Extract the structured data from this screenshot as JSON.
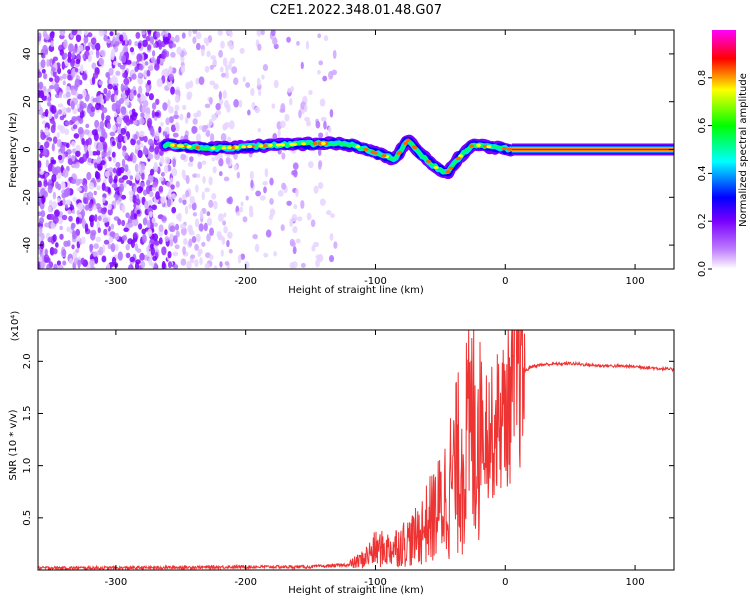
{
  "chart_data": [
    {
      "type": "heatmap",
      "title": "C2E1.2022.348.01.48.G07",
      "xlabel": "Height of straight line (km)",
      "ylabel": "Frequency (Hz)",
      "xlim": [
        -360,
        130
      ],
      "ylim": [
        -50,
        50
      ],
      "xticks": [
        -300,
        -200,
        -100,
        0,
        100
      ],
      "yticks": [
        -40,
        -20,
        0,
        20,
        40
      ],
      "grid": false,
      "colorbar": {
        "label": "Normalized spectral amplitude",
        "range": [
          0,
          1
        ],
        "ticks": [
          "0.0",
          "0.2",
          "0.4",
          "0.6",
          "0.8"
        ],
        "colormap": [
          "#ffffff",
          "#7a00ff",
          "#0000ff",
          "#00ffff",
          "#00ff00",
          "#ffff00",
          "#ff0000",
          "#ff00ff"
        ]
      },
      "tone_track": [
        [
          -262,
          2
        ],
        [
          -250,
          1.5
        ],
        [
          -230,
          0.5
        ],
        [
          -210,
          0.8
        ],
        [
          -190,
          1.5
        ],
        [
          -170,
          2
        ],
        [
          -150,
          2.5
        ],
        [
          -130,
          2.5
        ],
        [
          -115,
          1.5
        ],
        [
          -100,
          -1.5
        ],
        [
          -85,
          -4
        ],
        [
          -75,
          4
        ],
        [
          -65,
          -2
        ],
        [
          -55,
          -7
        ],
        [
          -45,
          -10
        ],
        [
          -35,
          -3
        ],
        [
          -25,
          2
        ],
        [
          -10,
          1
        ],
        [
          5,
          0
        ],
        [
          130,
          0
        ]
      ]
    },
    {
      "type": "line",
      "title": "",
      "xlabel": "Height of straight line (km)",
      "ylabel": "SNR (10 * v/v)",
      "multiplier": "(x10⁴)",
      "xlim": [
        -360,
        130
      ],
      "ylim": [
        0,
        2.3
      ],
      "xticks": [
        -300,
        -200,
        -100,
        0,
        100
      ],
      "yticks": [
        0.5,
        1.0,
        1.5,
        2.0
      ],
      "ytick_labels": [
        "0.5",
        "1.0",
        "1.5",
        "2.0"
      ],
      "grid": false,
      "series": [
        {
          "color": "#ee3333",
          "x": [
            -360,
            -300,
            -200,
            -150,
            -120,
            -110,
            -100,
            -90,
            -80,
            -70,
            -60,
            -50,
            -40,
            -30,
            -20,
            -15,
            -10,
            -5,
            0,
            5,
            10,
            20,
            30,
            50,
            70,
            100,
            130
          ],
          "y": [
            0.02,
            0.02,
            0.03,
            0.03,
            0.05,
            0.1,
            0.2,
            0.2,
            0.25,
            0.3,
            0.45,
            0.6,
            0.9,
            1.2,
            1.5,
            1.4,
            1.3,
            1.45,
            1.5,
            1.65,
            1.85,
            1.95,
            1.97,
            1.98,
            1.96,
            1.95,
            1.92
          ]
        }
      ]
    }
  ]
}
